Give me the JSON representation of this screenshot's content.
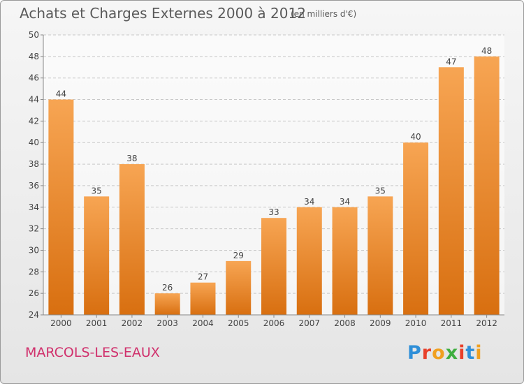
{
  "header": {
    "title": "Achats et Charges Externes 2000 à 2012",
    "unit": "(en milliers d'€)"
  },
  "footer": {
    "commune": "MARCOLS-LES-EAUX",
    "logo": "Proxiti"
  },
  "colors": {
    "bar_light": "#f7a553",
    "bar_dark": "#d86f10",
    "commune": "#d0306c",
    "logo_letters": [
      "#2f8fd8",
      "#e8402a",
      "#f0a020",
      "#3fae3f",
      "#e8402a",
      "#2f8fd8",
      "#f0a020"
    ]
  },
  "chart_data": {
    "type": "bar",
    "title": "Achats et Charges Externes 2000 à 2012",
    "subtitle": "(en milliers d'€)",
    "categories": [
      "2000",
      "2001",
      "2002",
      "2003",
      "2004",
      "2005",
      "2006",
      "2007",
      "2008",
      "2009",
      "2010",
      "2011",
      "2012"
    ],
    "values": [
      44,
      35,
      38,
      26,
      27,
      29,
      33,
      34,
      34,
      35,
      40,
      47,
      48
    ],
    "ylim": [
      24,
      50
    ],
    "yticks": [
      24,
      26,
      28,
      30,
      32,
      34,
      36,
      38,
      40,
      42,
      44,
      46,
      48,
      50
    ],
    "grid": true,
    "xlabel": "",
    "ylabel": ""
  }
}
